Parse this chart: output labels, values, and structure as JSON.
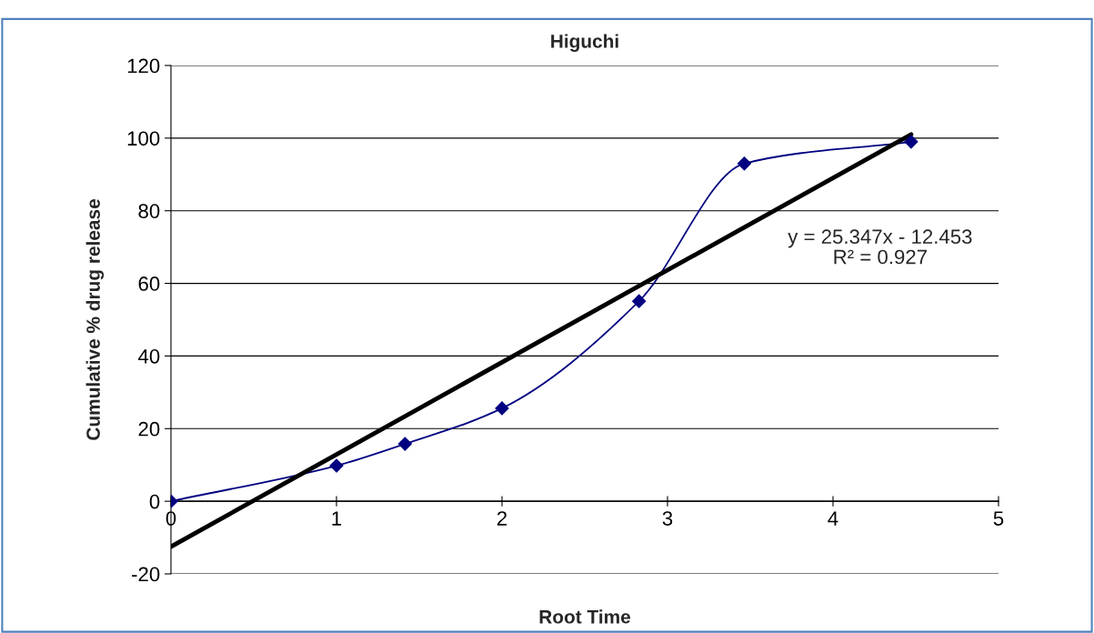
{
  "chart_data": {
    "type": "line",
    "title": "Higuchi",
    "xlabel": "Root Time",
    "ylabel": "Cumulative % drug release",
    "xlim": [
      0,
      5
    ],
    "xticks": [
      0,
      1,
      2,
      3,
      4,
      5
    ],
    "ylim": [
      -20,
      120
    ],
    "yticks": [
      -20,
      0,
      20,
      40,
      60,
      80,
      100,
      120
    ],
    "grid": "y",
    "series": [
      {
        "color": "#000080",
        "marker": "diamond",
        "x": [
          0,
          1,
          1.414,
          2,
          2.828,
          3.464,
          4.472
        ],
        "values": [
          0,
          9.8,
          15.8,
          25.6,
          55.1,
          93,
          99
        ]
      },
      {
        "color": "#000000",
        "marker": "none",
        "x": [
          0,
          4.472
        ],
        "values": [
          -12.5,
          101
        ]
      }
    ],
    "annotations": [
      "y = 25.347x - 12.453\nR² = 0.927"
    ]
  }
}
